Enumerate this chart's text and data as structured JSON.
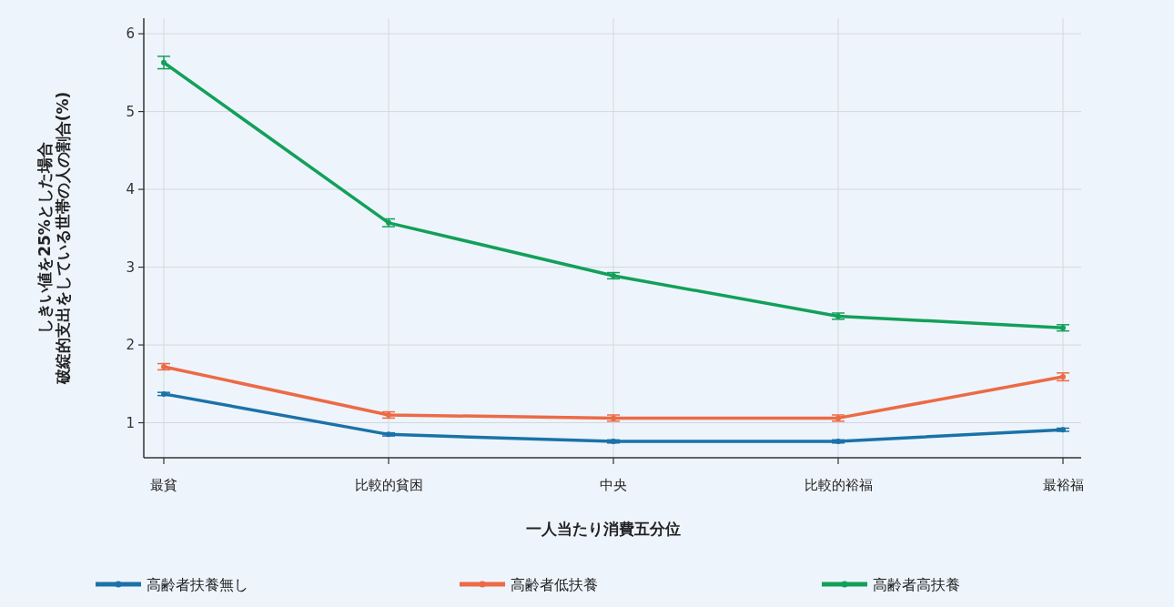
{
  "chart_data": {
    "type": "line",
    "xlabel": "一人当たり消費五分位",
    "ylabel": "しきい値を25%とした場合破綻的支出をしている世帯の人の割合(%)",
    "categories": [
      "最貧",
      "比較的貧困",
      "中央",
      "比較的裕福",
      "最裕福"
    ],
    "ylim": [
      0.55,
      6.2
    ],
    "yticks": [
      1,
      2,
      3,
      4,
      5,
      6
    ],
    "grid": true,
    "legend": "bottom",
    "marker": "circle",
    "line_style": "solid",
    "series": [
      {
        "name": "高齢者扶養無し",
        "color": "#1a72a8",
        "values": [
          1.37,
          0.85,
          0.76,
          0.76,
          0.91
        ],
        "errors": [
          0.02,
          0.02,
          0.02,
          0.02,
          0.02
        ]
      },
      {
        "name": "高齢者低扶養",
        "color": "#ec6a45",
        "values": [
          1.72,
          1.1,
          1.06,
          1.06,
          1.59
        ],
        "errors": [
          0.04,
          0.04,
          0.04,
          0.04,
          0.05
        ]
      },
      {
        "name": "高齢者高扶養",
        "color": "#12a05a",
        "values": [
          5.63,
          3.57,
          2.89,
          2.37,
          2.22
        ],
        "errors": [
          0.08,
          0.05,
          0.04,
          0.04,
          0.04
        ]
      }
    ]
  }
}
